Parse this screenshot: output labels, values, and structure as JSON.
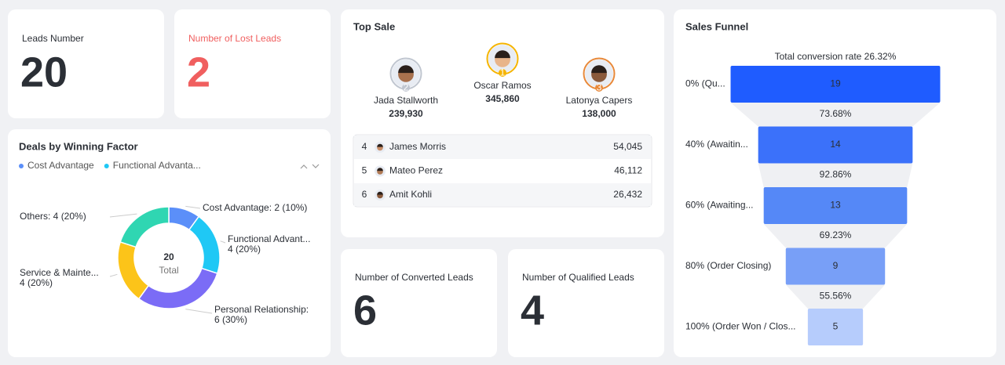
{
  "cards": {
    "leads": {
      "label": "Leads Number",
      "value": 20
    },
    "lost": {
      "label": "Number of Lost Leads",
      "value": 2
    },
    "converted": {
      "label": "Number of Converted Leads",
      "value": 6
    },
    "qualified": {
      "label": "Number of Qualified Leads",
      "value": 4
    }
  },
  "top_sale": {
    "title": "Top Sale",
    "podium": [
      {
        "name": "Jada Stallworth",
        "value": "239,930",
        "rank": 2
      },
      {
        "name": "Oscar Ramos",
        "value": "345,860",
        "rank": 1
      },
      {
        "name": "Latonya Capers",
        "value": "138,000",
        "rank": 3
      }
    ],
    "rows": [
      {
        "rank": 4,
        "name": "James Morris",
        "value": "54,045"
      },
      {
        "rank": 5,
        "name": "Mateo Perez",
        "value": "46,112"
      },
      {
        "rank": 6,
        "name": "Amit Kohli",
        "value": "26,432"
      }
    ]
  },
  "winning_factor": {
    "type": "donut",
    "title": "Deals by Winning Factor",
    "legend": [
      {
        "name": "Cost Advantage",
        "color": "#5b8ff9"
      },
      {
        "name": "Functional Advanta...",
        "color": "#1fc8f5"
      }
    ],
    "center_value": 20,
    "center_label": "Total",
    "slices": [
      {
        "label": [
          "Cost Advantage: 2 (10%)"
        ],
        "value": 2,
        "color": "#5b8ff9"
      },
      {
        "label": [
          "Functional Advant...",
          "4 (20%)"
        ],
        "value": 4,
        "color": "#1fc8f5"
      },
      {
        "label": [
          "Personal Relationship:",
          "6 (30%)"
        ],
        "value": 6,
        "color": "#7b6cf6"
      },
      {
        "label": [
          "Service & Mainte...",
          "4 (20%)"
        ],
        "value": 4,
        "color": "#fcc419"
      },
      {
        "label": [
          "Others: 4 (20%)"
        ],
        "value": 4,
        "color": "#2fd6b2"
      }
    ]
  },
  "funnel": {
    "type": "funnel",
    "title": "Sales Funnel",
    "subtitle": "Total conversion rate 26.32%",
    "stages": [
      {
        "label": "0% (Qu...",
        "value": 19,
        "color": "#1f5cff"
      },
      {
        "label": "40% (Awaitin...",
        "value": 14,
        "color": "#3b71fa"
      },
      {
        "label": "60% (Awaiting...",
        "value": 13,
        "color": "#5588f7"
      },
      {
        "label": "80% (Order Closing)",
        "value": 9,
        "color": "#789ff7"
      },
      {
        "label": "100% (Order Won / Clos...",
        "value": 5,
        "color": "#b6ccfc"
      }
    ],
    "rates": [
      "73.68%",
      "92.86%",
      "69.23%",
      "55.56%"
    ]
  }
}
